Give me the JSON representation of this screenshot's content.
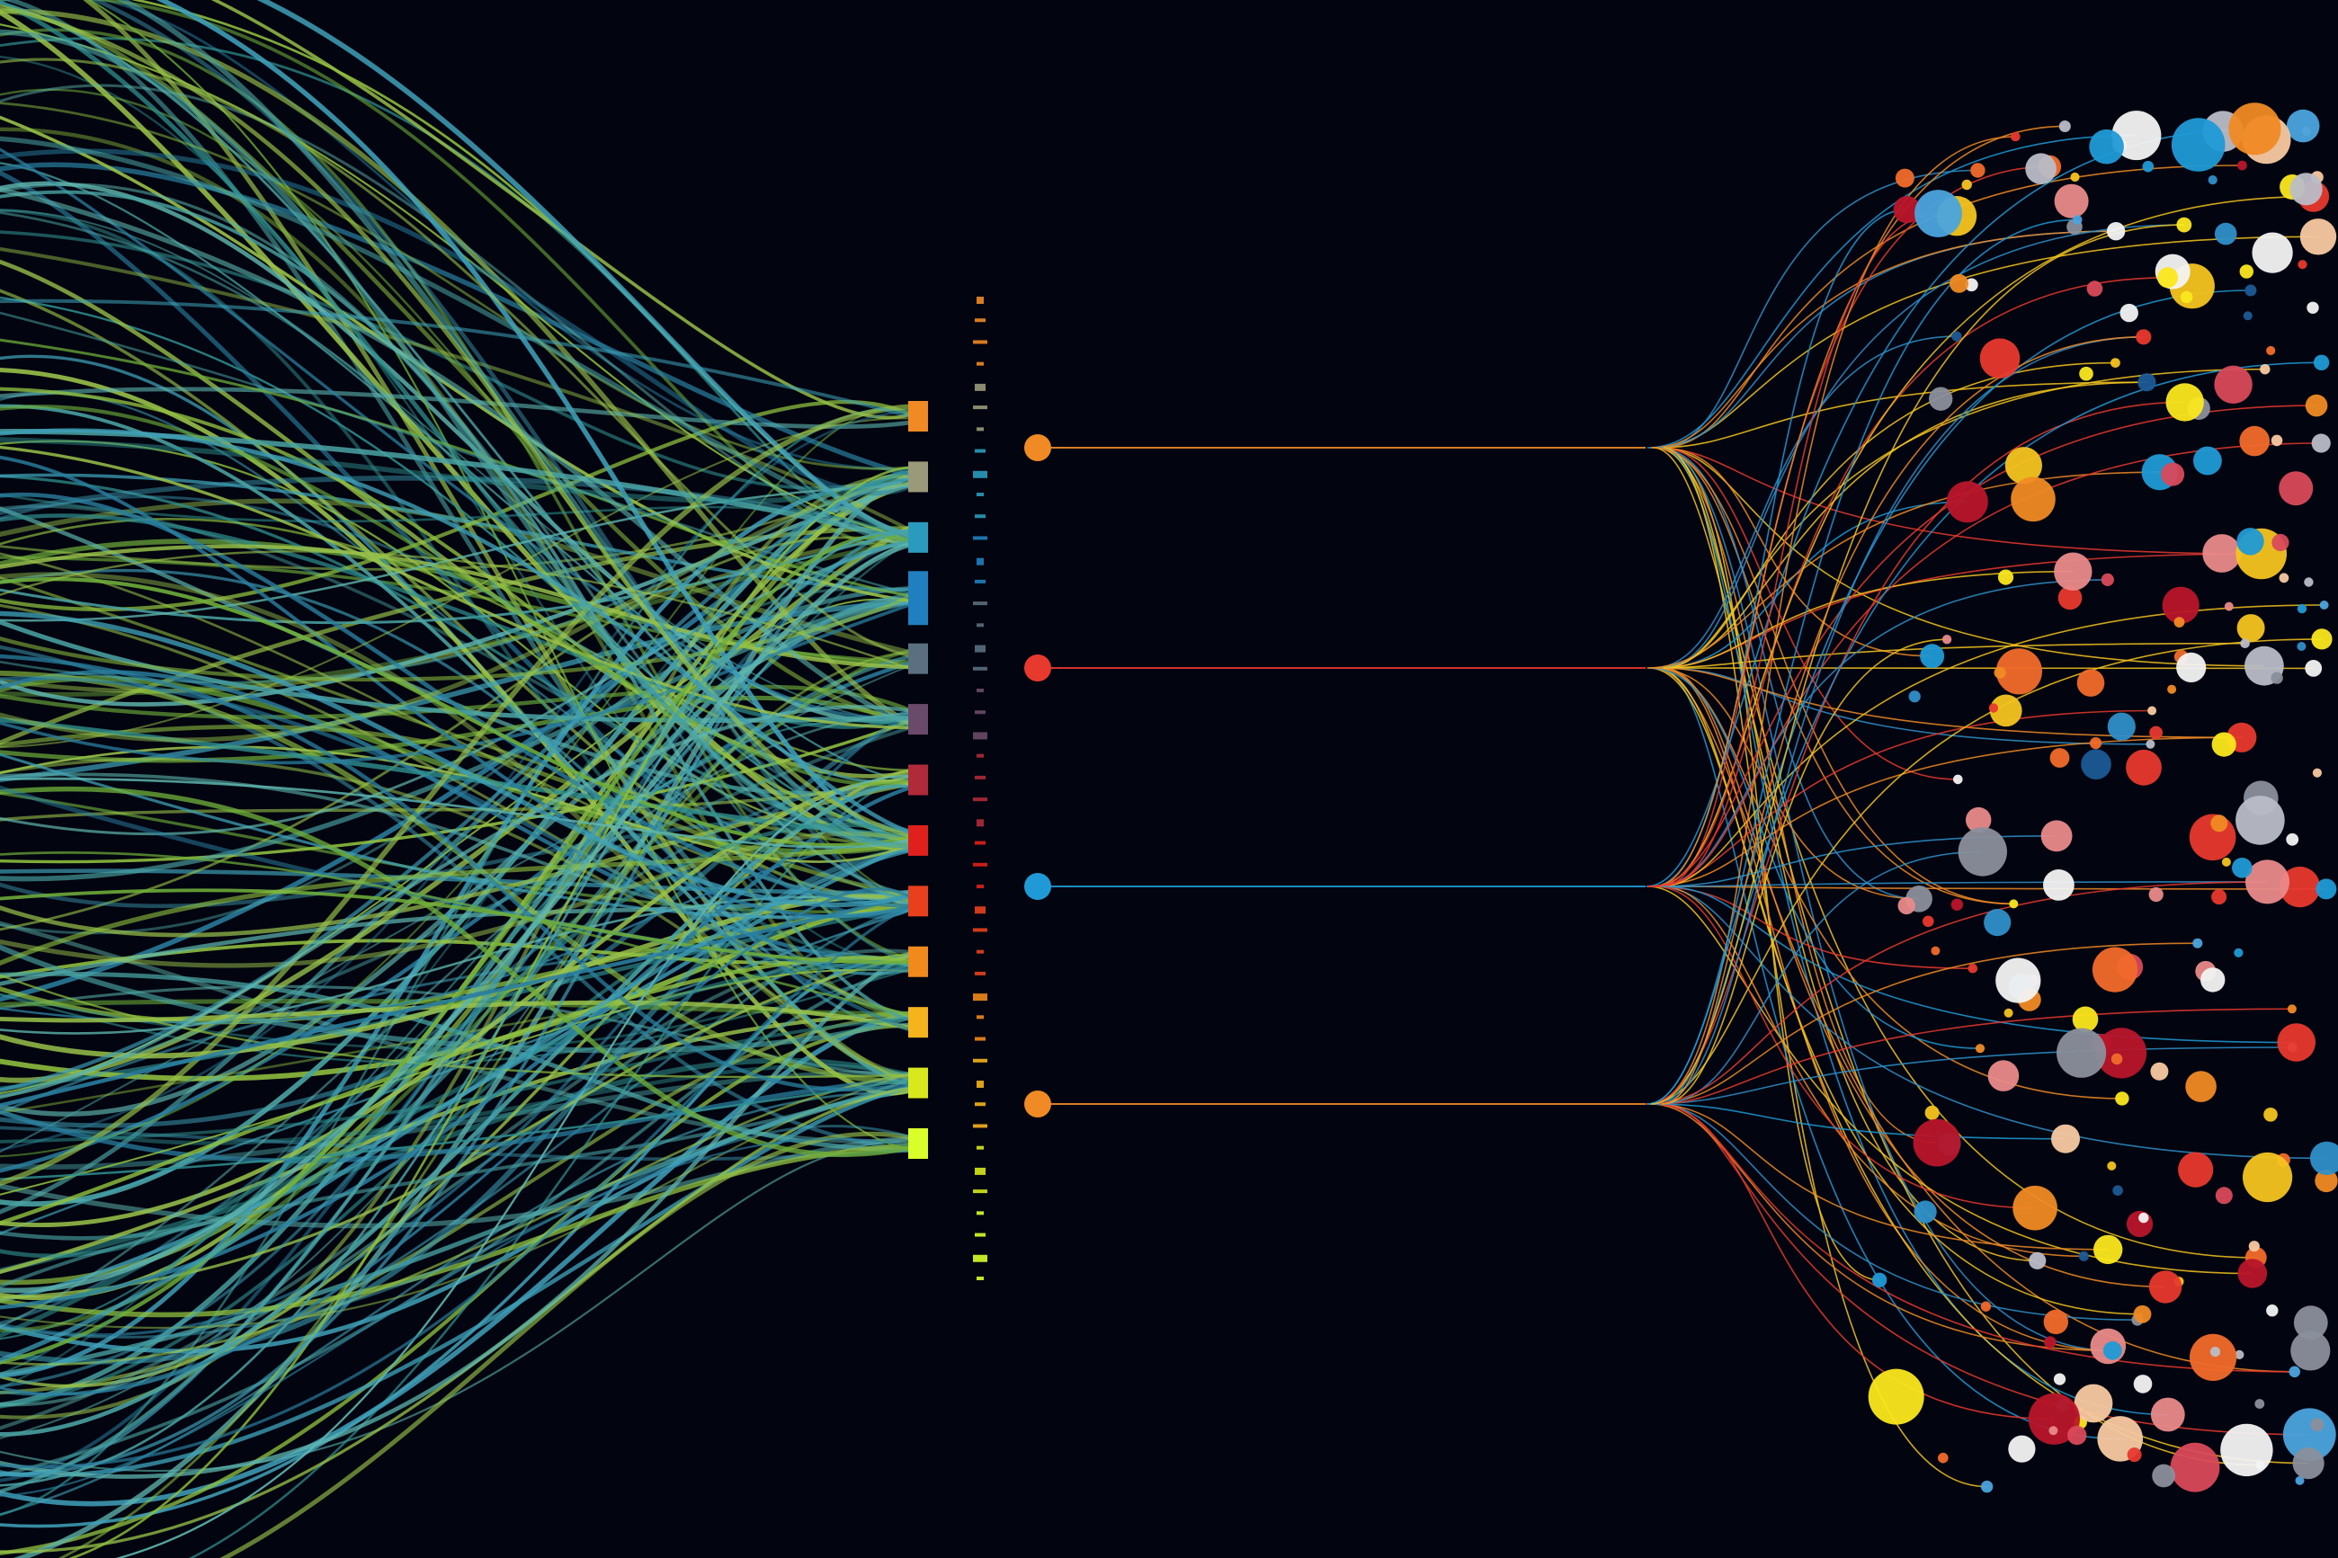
{
  "colors": {
    "background": "#02050f",
    "palette": [
      "#f08a24",
      "#e8392e",
      "#2e8fc9",
      "#1f9ad6",
      "#f4c41f",
      "#fbe81d",
      "#f3f3f3",
      "#b9bdc7",
      "#f7c9a1",
      "#e98a8a",
      "#b8152a",
      "#8a8f9c",
      "#4aa4de",
      "#f26a2a",
      "#1b5a96",
      "#d94a5a"
    ],
    "strand_colors": [
      "#2f8f8f",
      "#4aa3a3",
      "#6fae3a",
      "#8fbf3f",
      "#3fa0b8",
      "#5fb6b0",
      "#9ac24a",
      "#2a7fa0"
    ],
    "connector_colors": [
      "#f08a24",
      "#9a9a7a",
      "#2b9bbd",
      "#1f7fbf",
      "#5a6f80",
      "#6a4a6a",
      "#b02a3a",
      "#e0201c",
      "#e8401c",
      "#f08a1c",
      "#f5b41c",
      "#d8e81c",
      "#d8ff2a"
    ],
    "node_colors": [
      "#f08a24",
      "#e8392e",
      "#1f9ad6",
      "#f08a24"
    ]
  },
  "illustration": {
    "left_bundle": {
      "strand_count": 240
    },
    "connectors": {
      "count": 13
    },
    "tick_column": {
      "tick_count": 46
    },
    "nodes": {
      "count": 4
    },
    "fan_out": {
      "branches_per_node": 22
    },
    "dots": {
      "count": 230
    }
  }
}
